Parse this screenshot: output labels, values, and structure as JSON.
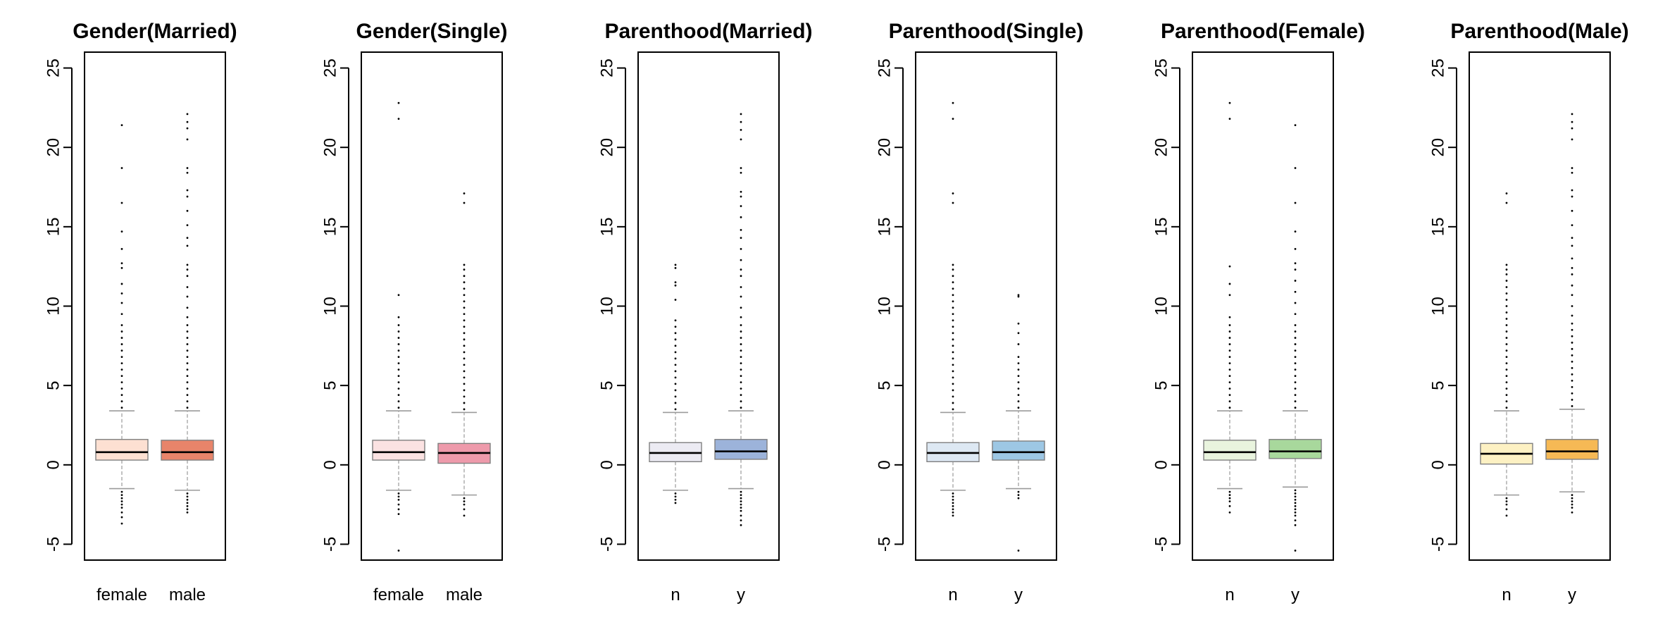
{
  "chart_data": [
    {
      "type": "box",
      "title": "Gender(Married)",
      "xlabel": "",
      "ylabel": "",
      "ylim": [
        -6,
        26
      ],
      "yticks": [
        -5,
        0,
        5,
        10,
        15,
        20,
        25
      ],
      "grid": false,
      "categories": [
        "female",
        "male"
      ],
      "colors": [
        "#fde0d2",
        "#e8846a"
      ],
      "boxes": [
        {
          "lower_whisker": -1.5,
          "q1": 0.3,
          "median": 0.8,
          "q3": 1.6,
          "upper_whisker": 3.4,
          "outliers_low": [
            -1.7,
            -1.9,
            -2.1,
            -2.3,
            -2.5,
            -2.7,
            -3.0,
            -3.3,
            -3.7
          ],
          "outliers_high": [
            3.6,
            4.0,
            4.4,
            4.8,
            5.2,
            5.6,
            6.0,
            6.4,
            6.8,
            7.2,
            7.6,
            8.0,
            8.4,
            8.8,
            9.5,
            10.2,
            10.8,
            11.4,
            12.4,
            12.7,
            13.6,
            14.7,
            16.5,
            18.7,
            21.4
          ]
        },
        {
          "lower_whisker": -1.6,
          "q1": 0.3,
          "median": 0.8,
          "q3": 1.55,
          "upper_whisker": 3.4,
          "outliers_low": [
            -1.8,
            -2.0,
            -2.2,
            -2.4,
            -2.6,
            -2.8,
            -3.0
          ],
          "outliers_high": [
            3.6,
            4.0,
            4.4,
            4.8,
            5.2,
            5.6,
            6.0,
            6.4,
            6.8,
            7.2,
            7.6,
            8.0,
            8.4,
            8.8,
            9.3,
            9.9,
            10.6,
            11.2,
            11.9,
            12.3,
            12.6,
            13.8,
            14.3,
            15.1,
            16.0,
            16.9,
            17.3,
            18.4,
            18.7,
            20.5,
            21.2,
            21.6,
            22.1
          ]
        }
      ]
    },
    {
      "type": "box",
      "title": "Gender(Single)",
      "xlabel": "",
      "ylabel": "",
      "ylim": [
        -6,
        26
      ],
      "yticks": [
        -5,
        0,
        5,
        10,
        15,
        20,
        25
      ],
      "grid": false,
      "categories": [
        "female",
        "male"
      ],
      "colors": [
        "#fbe2e2",
        "#ee9aab"
      ],
      "boxes": [
        {
          "lower_whisker": -1.6,
          "q1": 0.3,
          "median": 0.8,
          "q3": 1.55,
          "upper_whisker": 3.4,
          "outliers_low": [
            -1.8,
            -2.0,
            -2.2,
            -2.5,
            -2.8,
            -3.1,
            -5.4
          ],
          "outliers_high": [
            3.6,
            4.0,
            4.4,
            4.8,
            5.2,
            5.6,
            6.0,
            6.4,
            6.8,
            7.2,
            7.6,
            8.0,
            8.4,
            8.8,
            9.3,
            10.7,
            21.8,
            22.8
          ]
        },
        {
          "lower_whisker": -1.9,
          "q1": 0.1,
          "median": 0.75,
          "q3": 1.35,
          "upper_whisker": 3.3,
          "outliers_low": [
            -2.1,
            -2.3,
            -2.5,
            -2.8,
            -3.2
          ],
          "outliers_high": [
            3.5,
            3.9,
            4.3,
            4.7,
            5.1,
            5.5,
            5.9,
            6.3,
            6.7,
            7.1,
            7.5,
            7.9,
            8.3,
            8.7,
            9.1,
            9.5,
            9.9,
            10.3,
            10.7,
            11.1,
            11.5,
            11.9,
            12.3,
            12.6,
            16.5,
            17.1
          ]
        }
      ]
    },
    {
      "type": "box",
      "title": "Parenthood(Married)",
      "xlabel": "",
      "ylabel": "",
      "ylim": [
        -6,
        26
      ],
      "yticks": [
        -5,
        0,
        5,
        10,
        15,
        20,
        25
      ],
      "grid": false,
      "categories": [
        "n",
        "y"
      ],
      "colors": [
        "#ecebf3",
        "#9cb3da"
      ],
      "boxes": [
        {
          "lower_whisker": -1.6,
          "q1": 0.2,
          "median": 0.75,
          "q3": 1.4,
          "upper_whisker": 3.3,
          "outliers_low": [
            -1.8,
            -2.0,
            -2.2,
            -2.4
          ],
          "outliers_high": [
            3.5,
            3.9,
            4.3,
            4.7,
            5.1,
            5.5,
            5.9,
            6.3,
            6.7,
            7.1,
            7.5,
            7.9,
            8.3,
            8.7,
            9.1,
            10.4,
            11.3,
            11.5,
            12.4,
            12.6
          ]
        },
        {
          "lower_whisker": -1.5,
          "q1": 0.35,
          "median": 0.85,
          "q3": 1.6,
          "upper_whisker": 3.4,
          "outliers_low": [
            -1.7,
            -1.9,
            -2.1,
            -2.3,
            -2.5,
            -2.7,
            -2.9,
            -3.2,
            -3.5,
            -3.8
          ],
          "outliers_high": [
            3.6,
            4.0,
            4.4,
            4.8,
            5.2,
            5.6,
            6.0,
            6.4,
            6.8,
            7.2,
            7.6,
            8.0,
            8.4,
            8.8,
            9.3,
            9.9,
            10.6,
            11.2,
            11.9,
            12.3,
            12.9,
            13.6,
            14.3,
            14.8,
            15.6,
            16.3,
            16.9,
            17.2,
            18.4,
            18.7,
            20.5,
            21.1,
            21.6,
            22.1
          ]
        }
      ]
    },
    {
      "type": "box",
      "title": "Parenthood(Single)",
      "xlabel": "",
      "ylabel": "",
      "ylim": [
        -6,
        26
      ],
      "yticks": [
        -5,
        0,
        5,
        10,
        15,
        20,
        25
      ],
      "grid": false,
      "categories": [
        "n",
        "y"
      ],
      "colors": [
        "#dde8f3",
        "#9dc7e4"
      ],
      "boxes": [
        {
          "lower_whisker": -1.6,
          "q1": 0.2,
          "median": 0.75,
          "q3": 1.4,
          "upper_whisker": 3.3,
          "outliers_low": [
            -1.8,
            -2.0,
            -2.2,
            -2.4,
            -2.6,
            -2.8,
            -3.0,
            -3.2
          ],
          "outliers_high": [
            3.5,
            3.9,
            4.3,
            4.7,
            5.1,
            5.5,
            5.9,
            6.3,
            6.7,
            7.1,
            7.5,
            7.9,
            8.3,
            8.7,
            9.1,
            9.5,
            9.9,
            10.3,
            10.7,
            11.1,
            11.5,
            11.9,
            12.3,
            12.6,
            16.5,
            17.1,
            21.8,
            22.8
          ]
        },
        {
          "lower_whisker": -1.5,
          "q1": 0.3,
          "median": 0.8,
          "q3": 1.5,
          "upper_whisker": 3.4,
          "outliers_low": [
            -1.7,
            -1.9,
            -2.1,
            -5.4
          ],
          "outliers_high": [
            3.6,
            4.0,
            4.4,
            4.8,
            5.2,
            5.6,
            6.0,
            6.4,
            6.8,
            7.6,
            8.3,
            8.9,
            10.6,
            10.7
          ]
        }
      ]
    },
    {
      "type": "box",
      "title": "Parenthood(Female)",
      "xlabel": "",
      "ylabel": "",
      "ylim": [
        -6,
        26
      ],
      "yticks": [
        -5,
        0,
        5,
        10,
        15,
        20,
        25
      ],
      "grid": false,
      "categories": [
        "n",
        "y"
      ],
      "colors": [
        "#e9f4de",
        "#a8d89c"
      ],
      "boxes": [
        {
          "lower_whisker": -1.5,
          "q1": 0.3,
          "median": 0.8,
          "q3": 1.55,
          "upper_whisker": 3.4,
          "outliers_low": [
            -1.7,
            -1.9,
            -2.1,
            -2.3,
            -2.6,
            -3.0
          ],
          "outliers_high": [
            3.6,
            4.0,
            4.4,
            4.8,
            5.2,
            5.6,
            6.0,
            6.4,
            6.8,
            7.2,
            7.6,
            8.0,
            8.4,
            8.8,
            9.3,
            10.7,
            11.4,
            12.5,
            21.8,
            22.8
          ]
        },
        {
          "lower_whisker": -1.4,
          "q1": 0.4,
          "median": 0.85,
          "q3": 1.6,
          "upper_whisker": 3.4,
          "outliers_low": [
            -1.6,
            -1.8,
            -2.0,
            -2.2,
            -2.4,
            -2.6,
            -2.8,
            -3.0,
            -3.2,
            -3.5,
            -3.8,
            -5.4
          ],
          "outliers_high": [
            3.6,
            4.0,
            4.4,
            4.8,
            5.2,
            5.6,
            6.0,
            6.4,
            6.8,
            7.2,
            7.6,
            8.0,
            8.4,
            8.8,
            9.5,
            10.2,
            10.9,
            11.6,
            12.3,
            12.7,
            13.6,
            14.7,
            16.5,
            18.7,
            21.4
          ]
        }
      ]
    },
    {
      "type": "box",
      "title": "Parenthood(Male)",
      "xlabel": "",
      "ylabel": "",
      "ylim": [
        -6,
        26
      ],
      "yticks": [
        -5,
        0,
        5,
        10,
        15,
        20,
        25
      ],
      "grid": false,
      "categories": [
        "n",
        "y"
      ],
      "colors": [
        "#fdf1c3",
        "#f6b955"
      ],
      "boxes": [
        {
          "lower_whisker": -1.9,
          "q1": 0.05,
          "median": 0.7,
          "q3": 1.35,
          "upper_whisker": 3.4,
          "outliers_low": [
            -2.1,
            -2.3,
            -2.5,
            -2.8,
            -3.2
          ],
          "outliers_high": [
            3.6,
            4.0,
            4.4,
            4.8,
            5.2,
            5.6,
            6.0,
            6.4,
            6.8,
            7.2,
            7.6,
            8.0,
            8.4,
            8.8,
            9.2,
            9.6,
            10.0,
            10.4,
            10.8,
            11.2,
            11.6,
            12.0,
            12.3,
            12.6,
            16.5,
            17.1
          ]
        },
        {
          "lower_whisker": -1.7,
          "q1": 0.35,
          "median": 0.85,
          "q3": 1.6,
          "upper_whisker": 3.5,
          "outliers_low": [
            -1.9,
            -2.1,
            -2.3,
            -2.5,
            -2.7,
            -3.0
          ],
          "outliers_high": [
            3.7,
            4.1,
            4.5,
            4.9,
            5.3,
            5.7,
            6.1,
            6.5,
            6.9,
            7.3,
            7.7,
            8.1,
            8.5,
            8.9,
            9.4,
            10.0,
            10.7,
            11.3,
            12.0,
            12.4,
            13.0,
            13.8,
            14.3,
            15.1,
            16.0,
            16.9,
            17.3,
            18.4,
            18.7,
            20.5,
            21.2,
            21.6,
            22.1
          ]
        }
      ]
    }
  ]
}
